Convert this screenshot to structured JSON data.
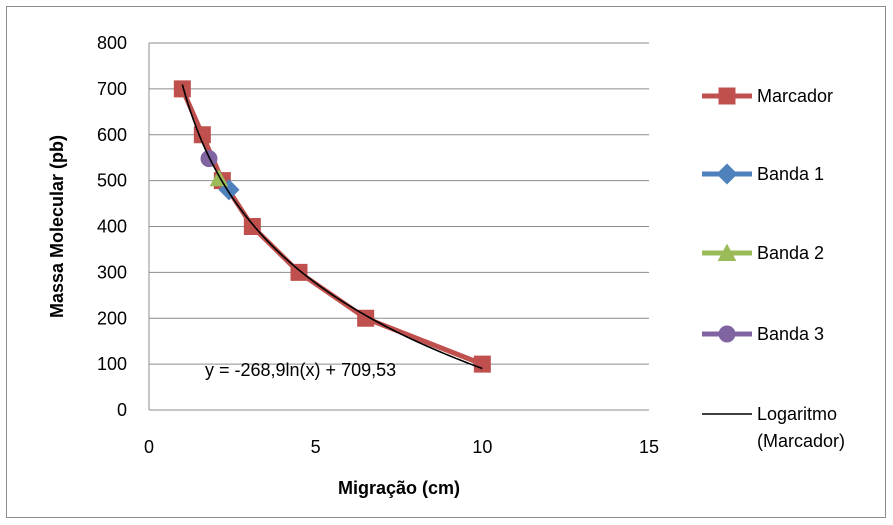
{
  "chart_data": {
    "type": "scatter",
    "title": "",
    "xlabel": "Migração (cm)",
    "ylabel": "Massa Molecular (pb)",
    "xlim": [
      0,
      15
    ],
    "ylim": [
      0,
      800
    ],
    "xticks": [
      "0",
      "5",
      "10",
      "15"
    ],
    "yticks": [
      "0",
      "100",
      "200",
      "300",
      "400",
      "500",
      "600",
      "700",
      "800"
    ],
    "grid": "horizontal",
    "legend_position": "right",
    "series": [
      {
        "name": "Marcador",
        "color": "#C0504D",
        "marker": "square",
        "x": [
          1.0,
          1.6,
          2.2,
          3.1,
          4.5,
          6.5,
          10.0
        ],
        "y": [
          700,
          600,
          500,
          400,
          300,
          200,
          100
        ]
      },
      {
        "name": "Banda 1",
        "color": "#4F81BD",
        "marker": "diamond",
        "x": [
          2.4
        ],
        "y": [
          480
        ]
      },
      {
        "name": "Banda 2",
        "color": "#9BBB59",
        "marker": "triangle",
        "x": [
          2.1
        ],
        "y": [
          505
        ]
      },
      {
        "name": "Banda 3",
        "color": "#8064A2",
        "marker": "circle",
        "x": [
          1.8
        ],
        "y": [
          548
        ]
      }
    ],
    "trendline": {
      "name": "Logaritmo (Marcador)",
      "name_lines": [
        "Logaritmo",
        "(Marcador)"
      ],
      "color": "#000000",
      "type": "logarithmic",
      "a": -268.9,
      "b": 709.53,
      "x_range": [
        1.0,
        10.0
      ],
      "equation": "y = -268,9ln(x) + 709,53"
    }
  }
}
